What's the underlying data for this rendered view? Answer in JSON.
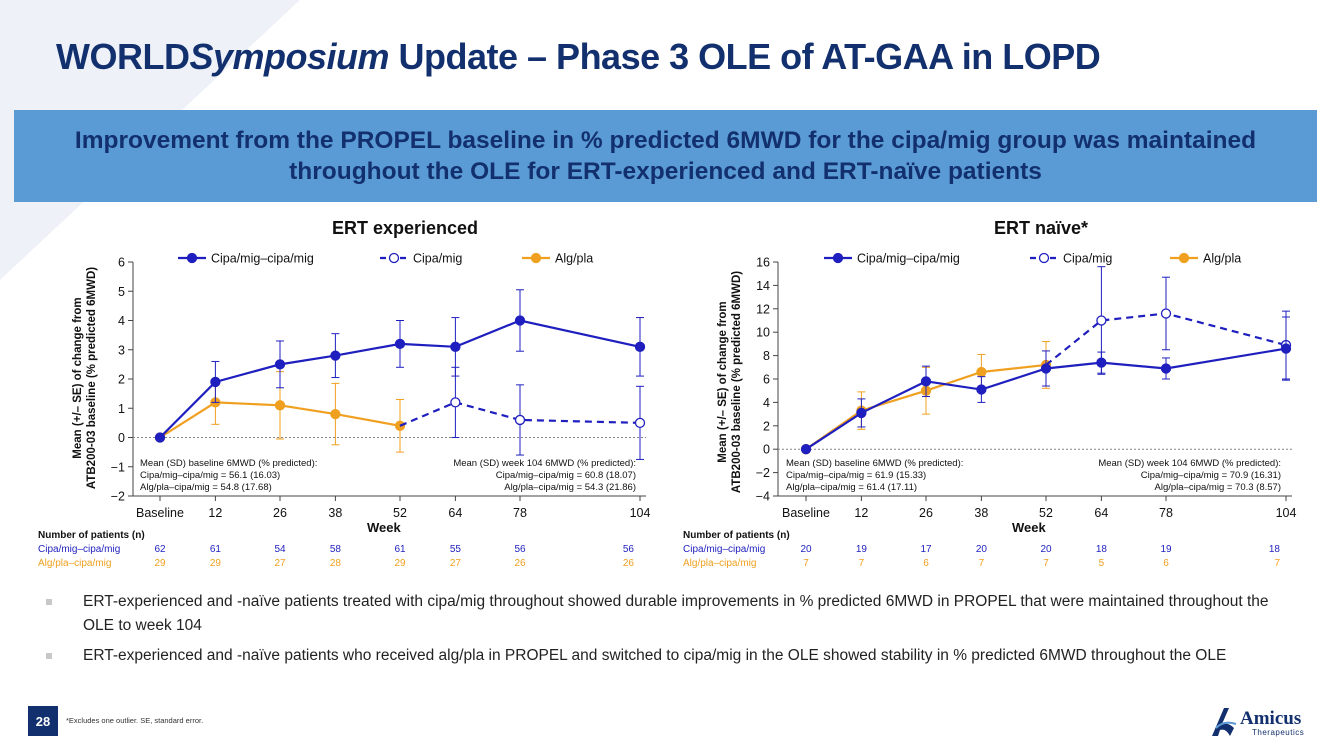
{
  "slide": {
    "title_bold": "WORLD",
    "title_italic": "Symposium",
    "title_rest": " Update – Phase 3 OLE of AT-GAA in LOPD",
    "banner": "Improvement from the PROPEL baseline in % predicted 6MWD for the cipa/mig group was maintained throughout the OLE for ERT-experienced and ERT-naïve patients",
    "bullets": [
      "ERT-experienced and -naïve patients treated with cipa/mig throughout showed durable improvements in % predicted 6MWD in PROPEL that were maintained throughout the OLE to week 104",
      "ERT-experienced and -naïve patients who received alg/pla in PROPEL and switched to cipa/mig in the OLE showed stability in % predicted 6MWD throughout the OLE"
    ],
    "page_number": "28",
    "footnote": "*Excludes one outlier. SE, standard error.",
    "logo_name": "Amicus",
    "logo_sub": "Therapeutics",
    "logo_icon": "amicus-a-logo-icon"
  },
  "colors": {
    "navy": "#13306e",
    "banner": "#5b9bd5",
    "blue": "#1f1fbf",
    "orange": "#f0a020"
  },
  "chart_data": [
    {
      "type": "line",
      "title": "ERT experienced",
      "xlabel": "Week",
      "ylabel": [
        "Mean (+/– SE) of change from",
        "ATB200-03 baseline (% predicted 6MWD)"
      ],
      "x_ticks": [
        0,
        12,
        26,
        38,
        52,
        64,
        78,
        104
      ],
      "x_tick_labels": [
        "Baseline",
        "12",
        "26",
        "38",
        "52",
        "64",
        "78",
        "104"
      ],
      "ylim": [
        -2,
        6
      ],
      "y_ticks": [
        -2,
        -1,
        0,
        1,
        2,
        3,
        4,
        5,
        6
      ],
      "y_tick_labels": [
        "−2",
        "−1",
        "0",
        "1",
        "2",
        "3",
        "4",
        "5",
        "6"
      ],
      "legend": [
        "Cipa/mig–cipa/mig",
        "Cipa/mig",
        "Alg/pla"
      ],
      "series": [
        {
          "name": "Cipa/mig–cipa/mig",
          "color": "#1f1fbf",
          "style": "solid",
          "marker": "filled",
          "x": [
            0,
            12,
            26,
            38,
            52,
            64,
            78,
            104
          ],
          "y": [
            0,
            1.9,
            2.5,
            2.8,
            3.2,
            3.1,
            4.0,
            3.1
          ],
          "se": [
            0,
            0.7,
            0.8,
            0.75,
            0.8,
            1.0,
            1.05,
            1.0
          ]
        },
        {
          "name": "Alg/pla",
          "color": "#f0a020",
          "style": "solid",
          "marker": "filled",
          "x": [
            0,
            12,
            26,
            38,
            52
          ],
          "y": [
            0,
            1.2,
            1.1,
            0.8,
            0.4
          ],
          "se": [
            0,
            0.75,
            1.15,
            1.05,
            0.9
          ]
        },
        {
          "name": "Cipa/mig",
          "color": "#1f1fbf",
          "style": "dashed",
          "marker": "open",
          "x": [
            52,
            64,
            78,
            104
          ],
          "y": [
            0.4,
            1.2,
            0.6,
            0.5
          ],
          "se": [
            0,
            1.2,
            1.2,
            1.25
          ]
        }
      ],
      "stats_left": [
        "Mean (SD) baseline 6MWD (% predicted):",
        "Cipa/mig–cipa/mig = 56.1 (16.03)",
        "Alg/pla–cipa/mig = 54.8 (17.68)"
      ],
      "stats_right": [
        "Mean (SD) week 104 6MWD (% predicted):",
        "Cipa/mig–cipa/mig = 60.8 (18.07)",
        "Alg/pla–cipa/mig = 54.3 (21.86)"
      ],
      "patients_header": "Number of patients (n)",
      "patients": [
        {
          "label": "Cipa/mig–cipa/mig",
          "values": [
            "62",
            "61",
            "54",
            "58",
            "61",
            "55",
            "56",
            "56"
          ]
        },
        {
          "label": "Alg/pla–cipa/mig",
          "values": [
            "29",
            "29",
            "27",
            "28",
            "29",
            "27",
            "26",
            "26"
          ]
        }
      ]
    },
    {
      "type": "line",
      "title": "ERT naïve*",
      "xlabel": "Week",
      "ylabel": [
        "Mean (+/– SE) of change from",
        "ATB200-03 baseline (% predicted 6MWD)"
      ],
      "x_ticks": [
        0,
        12,
        26,
        38,
        52,
        64,
        78,
        104
      ],
      "x_tick_labels": [
        "Baseline",
        "12",
        "26",
        "38",
        "52",
        "64",
        "78",
        "104"
      ],
      "ylim": [
        -4,
        16
      ],
      "y_ticks": [
        -4,
        -2,
        0,
        2,
        4,
        6,
        8,
        10,
        12,
        14,
        16
      ],
      "y_tick_labels": [
        "−4",
        "−2",
        "0",
        "2",
        "4",
        "6",
        "8",
        "10",
        "12",
        "14",
        "16"
      ],
      "legend": [
        "Cipa/mig–cipa/mig",
        "Cipa/mig",
        "Alg/pla"
      ],
      "series": [
        {
          "name": "Cipa/mig–cipa/mig",
          "color": "#1f1fbf",
          "style": "solid",
          "marker": "filled",
          "x": [
            0,
            12,
            26,
            38,
            52,
            64,
            78,
            104
          ],
          "y": [
            0,
            3.1,
            5.8,
            5.1,
            6.9,
            7.4,
            6.9,
            8.6
          ],
          "se": [
            0,
            1.2,
            1.3,
            1.1,
            1.5,
            0.9,
            0.9,
            2.7
          ]
        },
        {
          "name": "Alg/pla",
          "color": "#f0a020",
          "style": "solid",
          "marker": "filled",
          "x": [
            0,
            12,
            26,
            38,
            52
          ],
          "y": [
            0,
            3.3,
            5.0,
            6.6,
            7.2
          ],
          "se": [
            0,
            1.6,
            2.0,
            1.5,
            2.0
          ]
        },
        {
          "name": "Cipa/mig",
          "color": "#1f1fbf",
          "style": "dashed",
          "marker": "open",
          "x": [
            52,
            64,
            78,
            104
          ],
          "y": [
            7.2,
            11.0,
            11.6,
            8.9
          ],
          "se": [
            0,
            4.6,
            3.1,
            2.9
          ]
        }
      ],
      "stats_left": [
        "Mean (SD) baseline 6MWD (% predicted):",
        "Cipa/mig–cipa/mig = 61.9 (15.33)",
        "Alg/pla–cipa/mig = 61.4 (17.11)"
      ],
      "stats_right": [
        "Mean (SD) week 104 6MWD (% predicted):",
        "Cipa/mig–cipa/mig = 70.9 (16.31)",
        "Alg/pla–cipa/mig = 70.3 (8.57)"
      ],
      "patients_header": "Number of patients (n)",
      "patients": [
        {
          "label": "Cipa/mig–cipa/mig",
          "values": [
            "20",
            "19",
            "17",
            "20",
            "20",
            "18",
            "19",
            "18"
          ]
        },
        {
          "label": "Alg/pla–cipa/mig",
          "values": [
            "7",
            "7",
            "6",
            "7",
            "7",
            "5",
            "6",
            "7"
          ]
        }
      ]
    }
  ]
}
